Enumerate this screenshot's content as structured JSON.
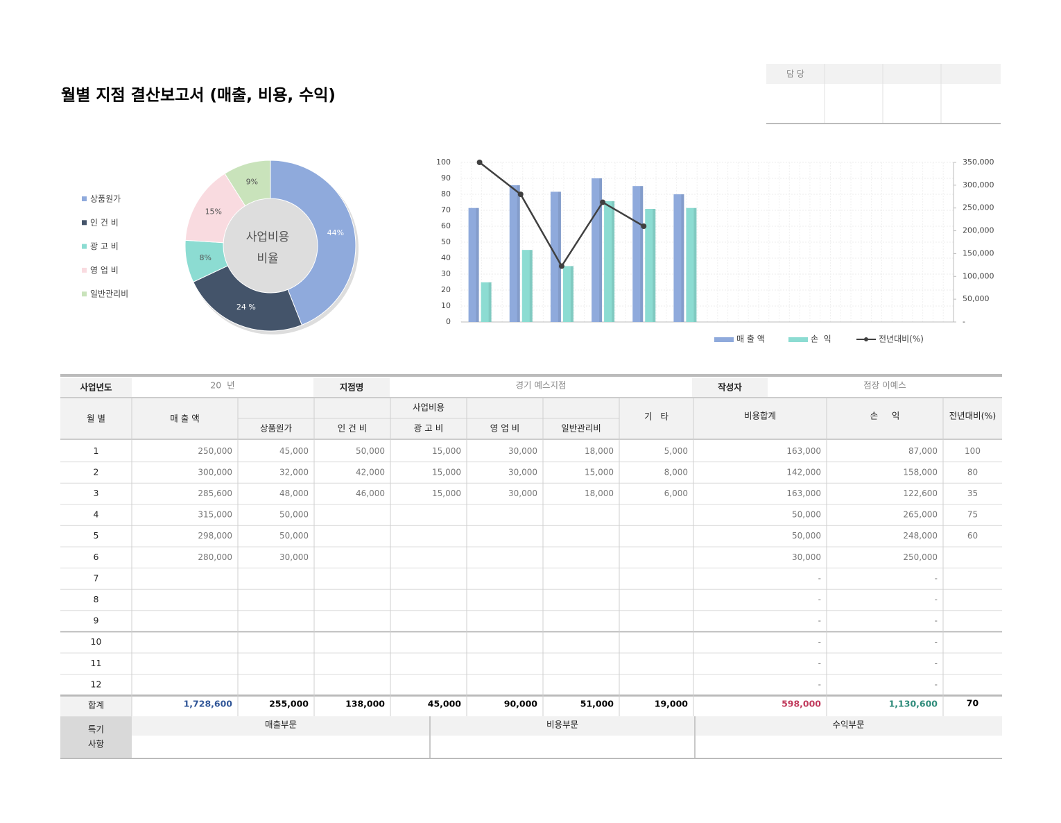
{
  "title": "월별 지점 결산보고서 (매출, 비용, 수익)",
  "approval": {
    "label": "담 당"
  },
  "pie_chart": {
    "type": "pie",
    "center_label": [
      "사업비용",
      "비율"
    ],
    "categories": [
      "상품원가",
      "인 건 비",
      "광 고 비",
      "영 업 비",
      "일반관리비"
    ],
    "values": [
      44,
      24,
      8,
      15,
      9
    ],
    "value_labels": [
      "44%",
      "24 %",
      "8%",
      "15%",
      "9%"
    ],
    "colors": [
      "#8faadc",
      "#44546a",
      "#8cdcd2",
      "#f9dbe0",
      "#c9e3bb"
    ]
  },
  "combo_chart": {
    "type": "bar-line",
    "categories": [
      null,
      null,
      null,
      null,
      null,
      null,
      null,
      null,
      null,
      null,
      null,
      null
    ],
    "series": [
      {
        "name": "매 출 액",
        "type": "bar",
        "axis": "y2",
        "color": "#8faadc",
        "values": [
          250000,
          300000,
          285600,
          315000,
          298000,
          280000,
          null,
          null,
          null,
          null,
          null,
          null
        ]
      },
      {
        "name": "손  익",
        "type": "bar",
        "axis": "y2",
        "color": "#8cdcd2",
        "values": [
          87000,
          158000,
          122600,
          265000,
          248000,
          250000,
          null,
          null,
          null,
          null,
          null,
          null
        ]
      },
      {
        "name": "전년대비(%)",
        "type": "line",
        "color": "#404040",
        "values": [
          100,
          80,
          35,
          75,
          60,
          null,
          null,
          null,
          null,
          null,
          null,
          null
        ]
      }
    ],
    "ylim": [
      0,
      100
    ],
    "yticks": [
      0,
      10,
      20,
      30,
      40,
      50,
      60,
      70,
      80,
      90,
      100
    ],
    "y2lim": [
      0,
      350000
    ],
    "y2ticks": [
      {
        "value": 0,
        "label": "-"
      },
      {
        "value": 50000,
        "label": "50,000"
      },
      {
        "value": 100000,
        "label": "100,000"
      },
      {
        "value": 150000,
        "label": "150,000"
      },
      {
        "value": 200000,
        "label": "200,000"
      },
      {
        "value": 250000,
        "label": "250,000"
      },
      {
        "value": 300000,
        "label": "300,000"
      },
      {
        "value": 350000,
        "label": "350,000"
      }
    ],
    "grid": true,
    "legend": "bottom"
  },
  "table": {
    "info": [
      [
        "사업년도",
        "20  년"
      ],
      [
        "지점명",
        "경기 예스지점"
      ],
      [
        "작성자",
        "점장 이예스"
      ]
    ],
    "header": {
      "month": "월 별",
      "sales": "매 출 액",
      "cost_group": "사업비용",
      "costs": [
        "상품원가",
        "인 건 비",
        "광 고 비",
        "영 업 비",
        "일반관리비"
      ],
      "other": "기   타",
      "cost_total": "비용합계",
      "profit": "손     익",
      "yoy": "전년대비(%)"
    },
    "rows": [
      [
        "1",
        "250,000",
        "45,000",
        "50,000",
        "15,000",
        "30,000",
        "18,000",
        "5,000",
        "163,000",
        "87,000",
        "100"
      ],
      [
        "2",
        "300,000",
        "32,000",
        "42,000",
        "15,000",
        "30,000",
        "15,000",
        "8,000",
        "142,000",
        "158,000",
        "80"
      ],
      [
        "3",
        "285,600",
        "48,000",
        "46,000",
        "15,000",
        "30,000",
        "18,000",
        "6,000",
        "163,000",
        "122,600",
        "35"
      ],
      [
        "4",
        "315,000",
        "50,000",
        null,
        null,
        null,
        null,
        null,
        "50,000",
        "265,000",
        "75"
      ],
      [
        "5",
        "298,000",
        "50,000",
        null,
        null,
        null,
        null,
        null,
        "50,000",
        "248,000",
        "60"
      ],
      [
        "6",
        "280,000",
        "30,000",
        null,
        null,
        null,
        null,
        null,
        "30,000",
        "250,000",
        null
      ],
      [
        "7",
        null,
        null,
        null,
        null,
        null,
        null,
        null,
        "-",
        "-",
        null
      ],
      [
        "8",
        null,
        null,
        null,
        null,
        null,
        null,
        null,
        "-",
        "-",
        null
      ],
      [
        "9",
        null,
        null,
        null,
        null,
        null,
        null,
        null,
        "-",
        "-",
        null
      ],
      [
        "10",
        null,
        null,
        null,
        null,
        null,
        null,
        null,
        "-",
        "-",
        null
      ],
      [
        "11",
        null,
        null,
        null,
        null,
        null,
        null,
        null,
        "-",
        "-",
        null
      ],
      [
        "12",
        null,
        null,
        null,
        null,
        null,
        null,
        null,
        "-",
        "-",
        null
      ]
    ],
    "total": [
      "합계",
      "1,728,600",
      "255,000",
      "138,000",
      "45,000",
      "90,000",
      "51,000",
      "19,000",
      "598,000",
      "1,130,600",
      "70"
    ]
  },
  "notes": {
    "label": [
      "특기",
      "사항"
    ],
    "sections": [
      "매출부문",
      "비용부문",
      "수익부문"
    ]
  }
}
